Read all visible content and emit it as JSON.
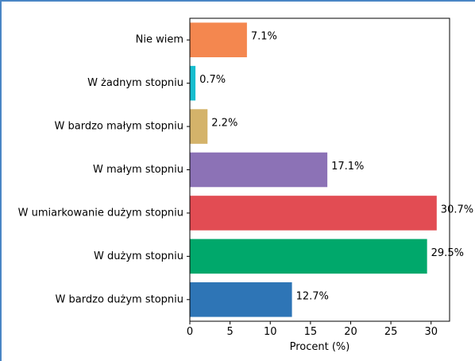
{
  "chart_data": {
    "type": "bar",
    "orientation": "horizontal",
    "categories": [
      "Nie wiem",
      "W żadnym stopniu",
      "W bardzo małym stopniu",
      "W małym stopniu",
      "W umiarkowanie dużym stopniu",
      "W dużym stopniu",
      "W bardzo dużym stopniu"
    ],
    "values": [
      7.1,
      0.7,
      2.2,
      17.1,
      30.7,
      29.5,
      12.7
    ],
    "value_labels": [
      "7.1%",
      "0.7%",
      "2.2%",
      "17.1%",
      "30.7%",
      "29.5%",
      "12.7%"
    ],
    "colors": [
      "#f4874f",
      "#17becf",
      "#d4b36a",
      "#8c72b6",
      "#e24c53",
      "#00a86b",
      "#2e75b6"
    ],
    "xlabel": "Procent (%)",
    "ylabel": "",
    "title": "",
    "xlim": [
      0,
      32.3
    ],
    "xticks": [
      0,
      5,
      10,
      15,
      20,
      25,
      30
    ],
    "grid": false
  }
}
